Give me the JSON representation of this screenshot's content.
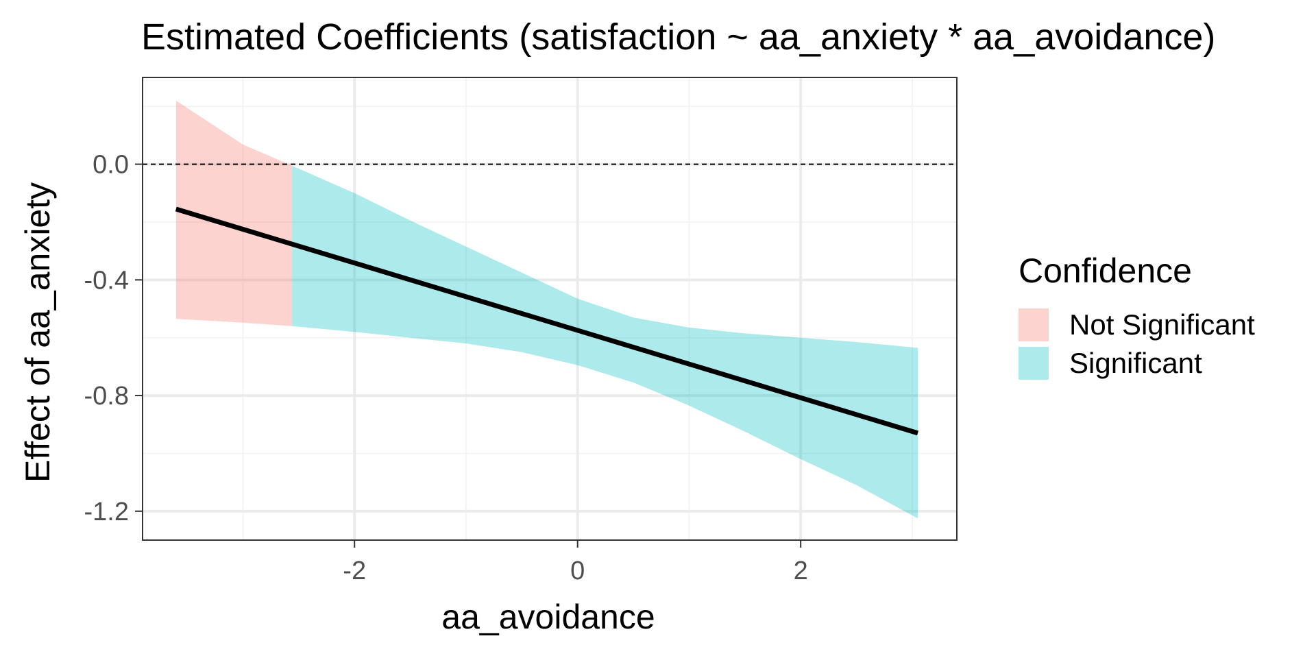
{
  "chart_data": {
    "type": "line",
    "title": "Estimated Coefficients (satisfaction ~ aa_anxiety * aa_avoidance)",
    "xlabel": "aa_avoidance",
    "ylabel": "Effect of aa_anxiety",
    "xlim": [
      -3.9,
      3.4
    ],
    "ylim": [
      -1.3,
      0.3
    ],
    "x_ticks": [
      -2,
      0,
      2
    ],
    "x_tick_labels": [
      "-2",
      "0",
      "2"
    ],
    "y_ticks": [
      0.0,
      -0.4,
      -0.8,
      -1.2
    ],
    "y_tick_labels": [
      "0.0",
      "-0.4",
      "-0.8",
      "-1.2"
    ],
    "grid": true,
    "reference_line": {
      "y": 0.0,
      "style": "dashed",
      "color": "#000000"
    },
    "line": {
      "x": [
        -3.6,
        3.05
      ],
      "y": [
        -0.155,
        -0.93
      ],
      "color": "#000000"
    },
    "ribbon": {
      "x": [
        -3.6,
        -3.0,
        -2.56,
        -2.0,
        -1.5,
        -1.0,
        -0.5,
        0.0,
        0.5,
        1.0,
        1.5,
        2.0,
        2.5,
        3.05
      ],
      "upper": [
        0.22,
        0.068,
        -0.005,
        -0.1,
        -0.195,
        -0.285,
        -0.375,
        -0.465,
        -0.53,
        -0.565,
        -0.585,
        -0.6,
        -0.615,
        -0.635
      ],
      "lower": [
        -0.535,
        -0.548,
        -0.56,
        -0.58,
        -0.6,
        -0.62,
        -0.65,
        -0.695,
        -0.755,
        -0.835,
        -0.925,
        -1.02,
        -1.11,
        -1.225
      ]
    },
    "significance_boundary_x": -2.56,
    "legend": {
      "title": "Confidence",
      "placement": "right",
      "entries": [
        {
          "label": "Not Significant",
          "color": "#F8766D"
        },
        {
          "label": "Significant",
          "color": "#00BFC4"
        }
      ]
    },
    "colors": {
      "not_significant": "#F8766D",
      "significant": "#00BFC4",
      "ribbon_opacity": 0.32,
      "panel_border": "#333333",
      "grid_major": "#ebebeb",
      "grid_minor": "#f4f4f4"
    }
  }
}
